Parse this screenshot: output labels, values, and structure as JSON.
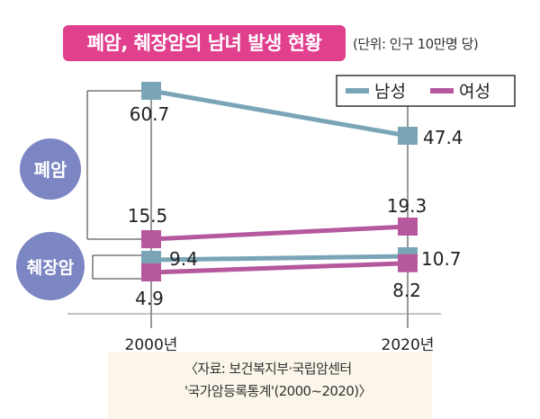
{
  "title": "폐암, 췌장암의 남녀 발생 현황",
  "unit": "(단위: 인구 10만명 당)",
  "source": [
    "〈자료: 보건복지부·국립암센터",
    "'국가암등록통계'(2000~2020)〉"
  ],
  "chart_data": {
    "type": "line",
    "x": [
      "2000년",
      "2020년"
    ],
    "groups": [
      {
        "label": "폐암",
        "series": [
          {
            "name": "남성",
            "values": [
              60.7,
              47.4
            ],
            "labels": [
              "60.7",
              "47.4"
            ]
          }
        ]
      },
      {
        "label": "췌장암",
        "series": [
          {
            "name": "남성",
            "values": [
              9.4,
              10.7
            ],
            "labels": [
              "9.4",
              "10.7"
            ]
          },
          {
            "name": "여성",
            "values": [
              4.9,
              8.2
            ],
            "labels": [
              "4.9",
              "8.2"
            ]
          }
        ]
      },
      {
        "label": "",
        "series": [
          {
            "name": "여성",
            "values": [
              15.5,
              19.3
            ],
            "labels": [
              "15.5",
              "19.3"
            ]
          }
        ]
      }
    ],
    "legend": [
      {
        "name": "남성",
        "color": "#7aa5b7"
      },
      {
        "name": "여성",
        "color": "#b5589e"
      }
    ],
    "legend_position": "top-right",
    "colors": {
      "male": "#7aa5b7",
      "female": "#b5589e",
      "circle": "#7b86c3",
      "title_bg": "#e0408e"
    }
  }
}
